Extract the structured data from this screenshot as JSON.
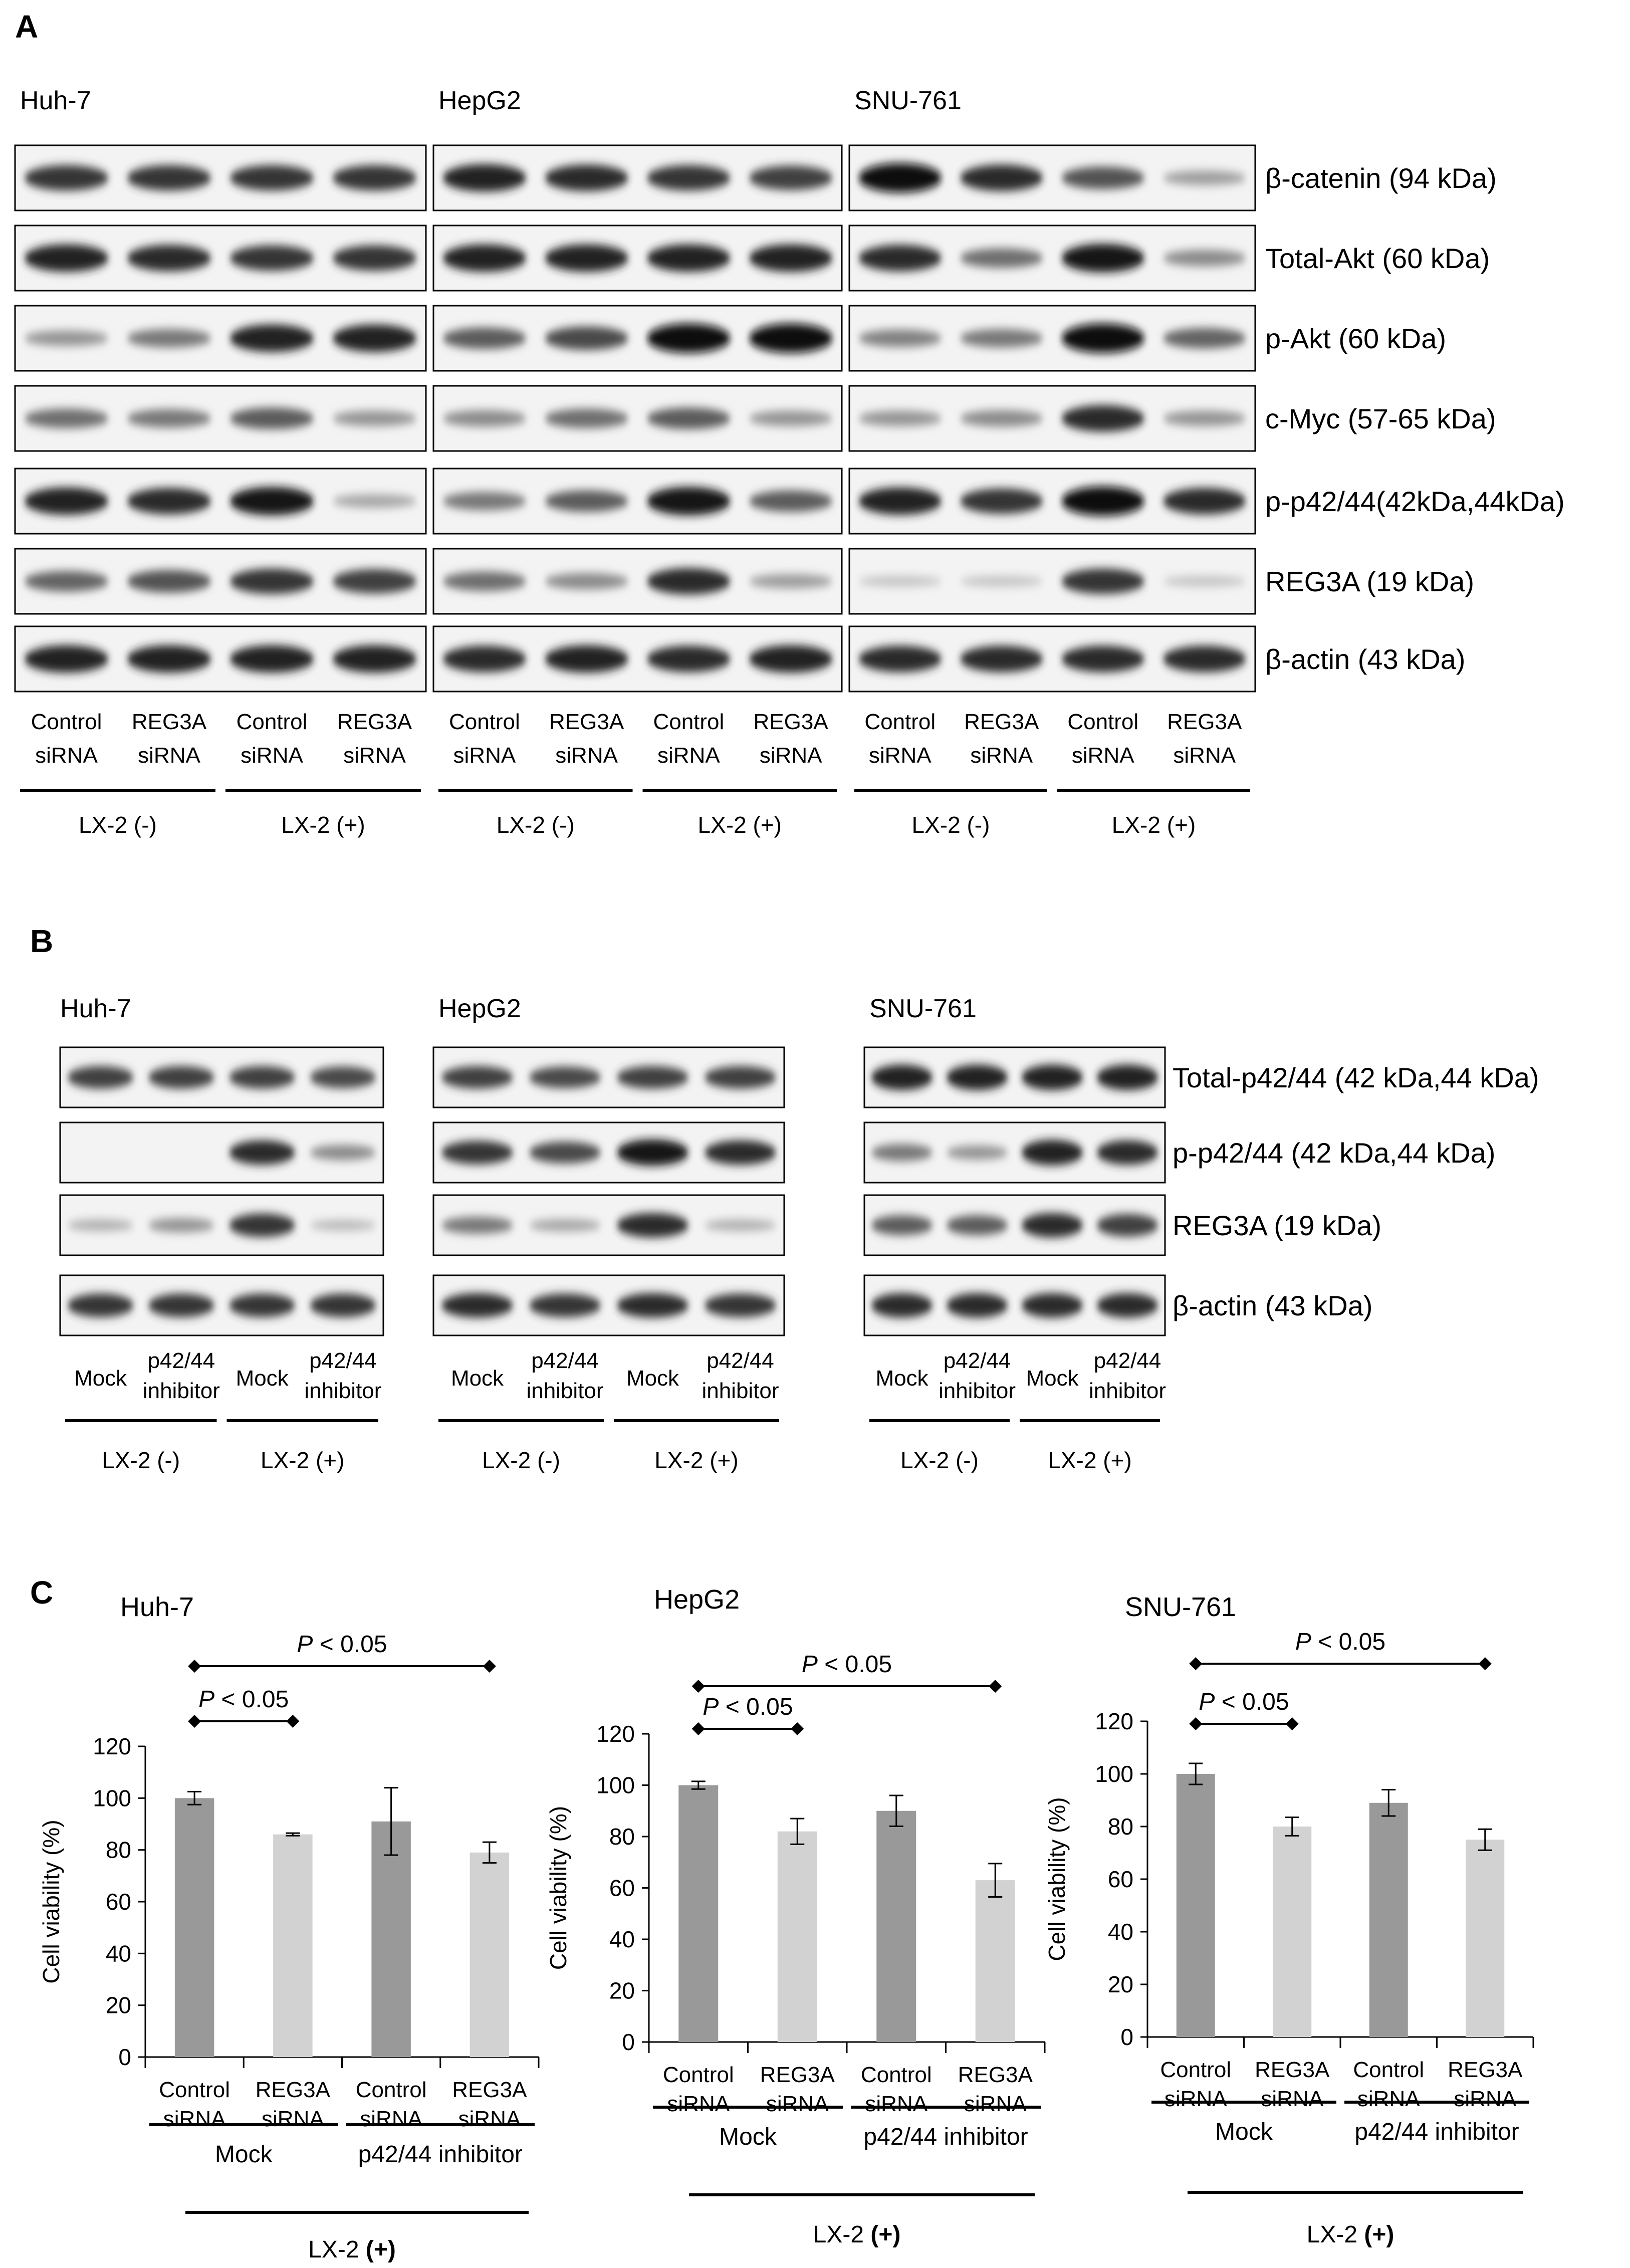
{
  "panel_a": {
    "letter": "A",
    "cell_lines": [
      {
        "name": "Huh-7",
        "levels": {
          "beta_catenin": [
            0.8,
            0.8,
            0.8,
            0.8
          ],
          "total_akt": [
            0.9,
            0.85,
            0.8,
            0.8
          ],
          "p_akt": [
            0.3,
            0.45,
            0.9,
            0.9
          ],
          "c_myc": [
            0.5,
            0.45,
            0.6,
            0.3
          ],
          "p_p42_44": [
            0.9,
            0.85,
            0.95,
            0.2
          ],
          "reg3a": [
            0.55,
            0.65,
            0.8,
            0.75
          ],
          "beta_actin": [
            0.9,
            0.9,
            0.9,
            0.9
          ]
        },
        "groups": [
          {
            "label": "LX-2 (-)",
            "lanes": [
              {
                "line1": "Control",
                "line2": "siRNA"
              },
              {
                "line1": "REG3A",
                "line2": "siRNA"
              }
            ]
          },
          {
            "label": "LX-2 (+)",
            "lanes": [
              {
                "line1": "Control",
                "line2": "siRNA"
              },
              {
                "line1": "REG3A",
                "line2": "siRNA"
              }
            ]
          }
        ]
      },
      {
        "name": "HepG2",
        "levels": {
          "beta_catenin": [
            0.9,
            0.85,
            0.8,
            0.75
          ],
          "total_akt": [
            0.9,
            0.9,
            0.9,
            0.9
          ],
          "p_akt": [
            0.6,
            0.7,
            1.0,
            1.0
          ],
          "c_myc": [
            0.35,
            0.5,
            0.6,
            0.3
          ],
          "p_p42_44": [
            0.45,
            0.6,
            0.95,
            0.6
          ],
          "reg3a": [
            0.5,
            0.35,
            0.85,
            0.25
          ],
          "beta_actin": [
            0.85,
            0.9,
            0.85,
            0.9
          ]
        },
        "groups": [
          {
            "label": "LX-2 (-)",
            "lanes": [
              {
                "line1": "Control",
                "line2": "siRNA"
              },
              {
                "line1": "REG3A",
                "line2": "siRNA"
              }
            ]
          },
          {
            "label": "LX-2 (+)",
            "lanes": [
              {
                "line1": "Control",
                "line2": "siRNA"
              },
              {
                "line1": "REG3A",
                "line2": "siRNA"
              }
            ]
          }
        ]
      },
      {
        "name": "SNU-761",
        "levels": {
          "beta_catenin": [
            1.0,
            0.85,
            0.65,
            0.25
          ],
          "total_akt": [
            0.85,
            0.5,
            0.95,
            0.35
          ],
          "p_akt": [
            0.4,
            0.45,
            1.0,
            0.55
          ],
          "c_myc": [
            0.3,
            0.35,
            0.85,
            0.3
          ],
          "p_p42_44": [
            0.9,
            0.8,
            1.0,
            0.85
          ],
          "reg3a": [
            0.05,
            0.05,
            0.8,
            0.05
          ],
          "beta_actin": [
            0.85,
            0.85,
            0.85,
            0.85
          ]
        },
        "groups": [
          {
            "label": "LX-2 (-)",
            "lanes": [
              {
                "line1": "Control",
                "line2": "siRNA"
              },
              {
                "line1": "REG3A",
                "line2": "siRNA"
              }
            ]
          },
          {
            "label": "LX-2 (+)",
            "lanes": [
              {
                "line1": "Control",
                "line2": "siRNA"
              },
              {
                "line1": "REG3A",
                "line2": "siRNA"
              }
            ]
          }
        ]
      }
    ],
    "rows": [
      {
        "key": "beta_catenin",
        "label": "β-catenin (94 kDa)"
      },
      {
        "key": "total_akt",
        "label": "Total-Akt (60 kDa)"
      },
      {
        "key": "p_akt",
        "label": "p-Akt (60 kDa)"
      },
      {
        "key": "c_myc",
        "label": "c-Myc (57-65 kDa)"
      },
      {
        "key": "p_p42_44",
        "label": "p-p42/44(42kDa,44kDa)"
      },
      {
        "key": "reg3a",
        "label": "REG3A (19 kDa)"
      },
      {
        "key": "beta_actin",
        "label": "β-actin (43 kDa)"
      }
    ]
  },
  "panel_b": {
    "letter": "B",
    "cell_lines": [
      {
        "name": "Huh-7",
        "levels": {
          "total_p42_44": [
            0.75,
            0.75,
            0.75,
            0.7
          ],
          "p_p42_44": [
            0.0,
            0.0,
            0.85,
            0.35
          ],
          "reg3a": [
            0.15,
            0.3,
            0.8,
            0.1
          ],
          "beta_actin": [
            0.8,
            0.8,
            0.8,
            0.8
          ]
        },
        "groups": [
          {
            "label": "LX-2 (-)",
            "lanes": [
              {
                "line1": "Mock",
                "line2": ""
              },
              {
                "line1": "p42/44",
                "line2": "inhibitor"
              }
            ]
          },
          {
            "label": "LX-2 (+)",
            "lanes": [
              {
                "line1": "Mock",
                "line2": ""
              },
              {
                "line1": "p42/44",
                "line2": "inhibitor"
              }
            ]
          }
        ]
      },
      {
        "name": "HepG2",
        "levels": {
          "total_p42_44": [
            0.75,
            0.7,
            0.75,
            0.75
          ],
          "p_p42_44": [
            0.8,
            0.7,
            0.95,
            0.85
          ],
          "reg3a": [
            0.45,
            0.2,
            0.85,
            0.15
          ],
          "beta_actin": [
            0.85,
            0.8,
            0.85,
            0.8
          ]
        },
        "groups": [
          {
            "label": "LX-2 (-)",
            "lanes": [
              {
                "line1": "Mock",
                "line2": ""
              },
              {
                "line1": "p42/44",
                "line2": "inhibitor"
              }
            ]
          },
          {
            "label": "LX-2 (+)",
            "lanes": [
              {
                "line1": "Mock",
                "line2": ""
              },
              {
                "line1": "p42/44",
                "line2": "inhibitor"
              }
            ]
          }
        ]
      },
      {
        "name": "SNU-761",
        "levels": {
          "total_p42_44": [
            0.9,
            0.9,
            0.9,
            0.9
          ],
          "p_p42_44": [
            0.45,
            0.3,
            0.9,
            0.85
          ],
          "reg3a": [
            0.6,
            0.6,
            0.85,
            0.75
          ],
          "beta_actin": [
            0.85,
            0.85,
            0.85,
            0.85
          ]
        },
        "groups": [
          {
            "label": "LX-2 (-)",
            "lanes": [
              {
                "line1": "Mock",
                "line2": ""
              },
              {
                "line1": "p42/44",
                "line2": "inhibitor"
              }
            ]
          },
          {
            "label": "LX-2 (+)",
            "lanes": [
              {
                "line1": "Mock",
                "line2": ""
              },
              {
                "line1": "p42/44",
                "line2": "inhibitor"
              }
            ]
          }
        ]
      }
    ],
    "rows": [
      {
        "key": "total_p42_44",
        "label": "Total-p42/44 (42 kDa,44 kDa)"
      },
      {
        "key": "p_p42_44",
        "label": "p-p42/44 (42 kDa,44 kDa)"
      },
      {
        "key": "reg3a",
        "label": "REG3A (19 kDa)"
      },
      {
        "key": "beta_actin",
        "label": "β-actin (43 kDa)"
      }
    ]
  },
  "panel_c": {
    "letter": "C",
    "bar_colors": [
      "#999999",
      "#d2d2d2"
    ]
  },
  "chart_data": [
    {
      "type": "bar",
      "title": "Huh-7",
      "ylabel": "Cell viability (%)",
      "ylim": [
        0,
        120
      ],
      "yticks": [
        0,
        20,
        40,
        60,
        80,
        100,
        120
      ],
      "categories": [
        {
          "line1": "Control",
          "line2": "siRNA"
        },
        {
          "line1": "REG3A",
          "line2": "siRNA"
        },
        {
          "line1": "Control",
          "line2": "siRNA"
        },
        {
          "line1": "REG3A",
          "line2": "siRNA"
        }
      ],
      "values": [
        100,
        86,
        91,
        79
      ],
      "errors": [
        2.5,
        0.5,
        13,
        4
      ],
      "groups": [
        {
          "label": "Mock"
        },
        {
          "label": "p42/44 inhibitor"
        }
      ],
      "condition_prefix": "LX-2 ",
      "condition_bold": "(+)",
      "comparisons": [
        {
          "from": 0,
          "to": 1,
          "p_italic": "P",
          "p_rest": " < 0.05"
        },
        {
          "from": 0,
          "to": 3,
          "p_italic": "P",
          "p_rest": " < 0.05"
        }
      ]
    },
    {
      "type": "bar",
      "title": "HepG2",
      "ylabel": "Cell viability (%)",
      "ylim": [
        0,
        120
      ],
      "yticks": [
        0,
        20,
        40,
        60,
        80,
        100,
        120
      ],
      "categories": [
        {
          "line1": "Control",
          "line2": "siRNA"
        },
        {
          "line1": "REG3A",
          "line2": "siRNA"
        },
        {
          "line1": "Control",
          "line2": "siRNA"
        },
        {
          "line1": "REG3A",
          "line2": "siRNA"
        }
      ],
      "values": [
        100,
        82,
        90,
        63
      ],
      "errors": [
        1.5,
        5,
        6,
        6.5
      ],
      "groups": [
        {
          "label": "Mock"
        },
        {
          "label": "p42/44 inhibitor"
        }
      ],
      "condition_prefix": "LX-2 ",
      "condition_bold": "(+)",
      "comparisons": [
        {
          "from": 0,
          "to": 1,
          "p_italic": "P",
          "p_rest": " < 0.05"
        },
        {
          "from": 0,
          "to": 3,
          "p_italic": "P",
          "p_rest": " < 0.05"
        }
      ]
    },
    {
      "type": "bar",
      "title": "SNU-761",
      "ylabel": "Cell viability (%)",
      "ylim": [
        0,
        120
      ],
      "yticks": [
        0,
        20,
        40,
        60,
        80,
        100,
        120
      ],
      "categories": [
        {
          "line1": "Control",
          "line2": "siRNA"
        },
        {
          "line1": "REG3A",
          "line2": "siRNA"
        },
        {
          "line1": "Control",
          "line2": "siRNA"
        },
        {
          "line1": "REG3A",
          "line2": "siRNA"
        }
      ],
      "values": [
        100,
        80,
        89,
        75
      ],
      "errors": [
        4,
        3.5,
        5,
        4
      ],
      "groups": [
        {
          "label": "Mock"
        },
        {
          "label": "p42/44 inhibitor"
        }
      ],
      "condition_prefix": "LX-2 ",
      "condition_bold": "(+)",
      "comparisons": [
        {
          "from": 0,
          "to": 1,
          "p_italic": "P",
          "p_rest": " < 0.05"
        },
        {
          "from": 0,
          "to": 3,
          "p_italic": "P",
          "p_rest": " < 0.05"
        }
      ]
    }
  ]
}
